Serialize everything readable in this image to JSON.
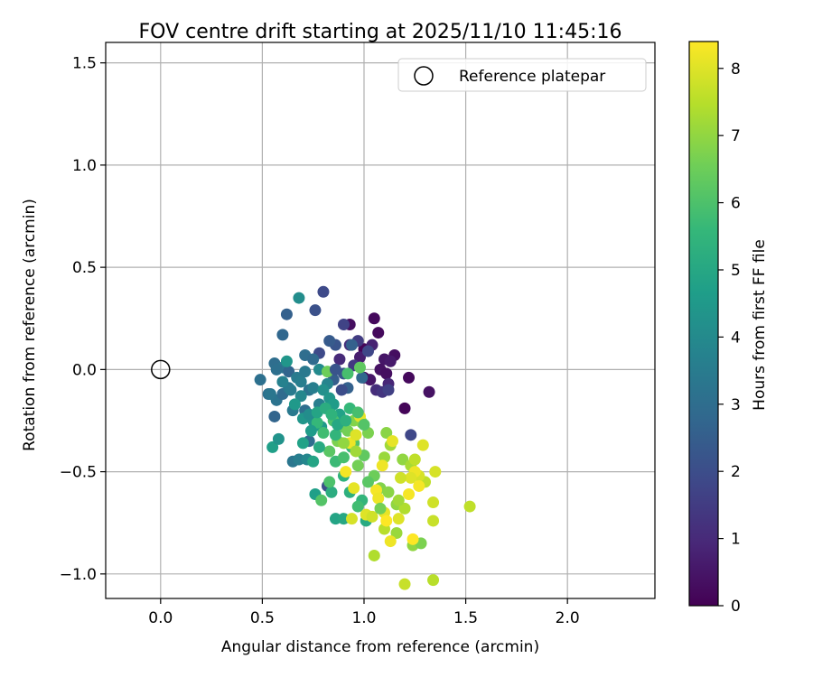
{
  "chart_data": {
    "type": "scatter",
    "title": "FOV centre drift starting at 2025/11/10 11:45:16",
    "xlabel": "Angular distance from reference (arcmin)",
    "ylabel": "Rotation from reference (arcmin)",
    "xlim": [
      -0.27,
      2.43
    ],
    "ylim": [
      -1.12,
      1.6
    ],
    "xticks": [
      0.0,
      0.5,
      1.0,
      1.5,
      2.0
    ],
    "xtick_labels": [
      "0.0",
      "0.5",
      "1.0",
      "1.5",
      "2.0"
    ],
    "yticks": [
      1.5,
      1.0,
      0.5,
      0.0,
      -0.5,
      -1.0
    ],
    "ytick_labels": [
      "1.5",
      "1.0",
      "0.5",
      "0.0",
      "−0.5",
      "−1.0"
    ],
    "grid": true,
    "legend": {
      "location": "top-right",
      "entries": [
        "Reference platepar"
      ]
    },
    "reference_point": {
      "x": 0.0,
      "y": 0.0,
      "label": "Reference platepar"
    },
    "colorbar": {
      "label": "Hours from first FF file",
      "range": [
        0,
        8.4
      ],
      "ticks": [
        0,
        1,
        2,
        3,
        4,
        5,
        6,
        7,
        8
      ],
      "tick_labels": [
        "0",
        "1",
        "2",
        "3",
        "4",
        "5",
        "6",
        "7",
        "8"
      ],
      "colormap": "viridis",
      "colormap_stops": [
        "#440154",
        "#482878",
        "#3e4989",
        "#31688e",
        "#26828e",
        "#1f9e89",
        "#35b779",
        "#6ece58",
        "#b5de2b",
        "#fde725"
      ]
    },
    "points": [
      [
        1.05,
        0.25,
        0.2
      ],
      [
        0.93,
        0.22,
        0.3
      ],
      [
        1.07,
        0.18,
        0.2
      ],
      [
        1.0,
        0.1,
        0.1
      ],
      [
        1.15,
        0.07,
        0.3
      ],
      [
        1.1,
        0.05,
        0.5
      ],
      [
        1.13,
        0.04,
        0.6
      ],
      [
        1.04,
        0.12,
        0.8
      ],
      [
        0.98,
        0.06,
        0.7
      ],
      [
        1.08,
        0.0,
        0.4
      ],
      [
        1.11,
        -0.02,
        0.3
      ],
      [
        1.22,
        -0.04,
        0.2
      ],
      [
        1.32,
        -0.11,
        0.4
      ],
      [
        1.2,
        -0.19,
        0.1
      ],
      [
        1.0,
        -0.04,
        0.1
      ],
      [
        1.03,
        -0.05,
        0.5
      ],
      [
        1.12,
        -0.07,
        0.9
      ],
      [
        1.06,
        -0.1,
        1.1
      ],
      [
        1.09,
        -0.11,
        1.3
      ],
      [
        1.12,
        -0.1,
        1.6
      ],
      [
        0.88,
        0.05,
        1.0
      ],
      [
        0.93,
        0.12,
        1.2
      ],
      [
        0.97,
        0.14,
        1.5
      ],
      [
        1.02,
        0.09,
        1.8
      ],
      [
        0.9,
        0.22,
        1.7
      ],
      [
        0.95,
        0.02,
        1.4
      ],
      [
        0.8,
        0.38,
        1.9
      ],
      [
        0.76,
        0.29,
        2.1
      ],
      [
        0.86,
        0.12,
        2.2
      ],
      [
        0.83,
        0.14,
        2.4
      ],
      [
        0.9,
        -0.02,
        2.3
      ],
      [
        0.78,
        0.08,
        1.9
      ],
      [
        0.85,
        -0.05,
        2.5
      ],
      [
        1.23,
        -0.32,
        1.8
      ],
      [
        0.82,
        -0.57,
        2.1
      ],
      [
        0.92,
        -0.09,
        2.6
      ],
      [
        0.94,
        0.12,
        2.6
      ],
      [
        0.99,
        -0.04,
        2.8
      ],
      [
        0.62,
        0.27,
        2.6
      ],
      [
        0.6,
        0.17,
        2.8
      ],
      [
        0.56,
        0.03,
        3.0
      ],
      [
        0.6,
        0.01,
        3.3
      ],
      [
        0.63,
        -0.01,
        2.7
      ],
      [
        0.56,
        -0.23,
        2.7
      ],
      [
        0.49,
        -0.05,
        3.1
      ],
      [
        0.53,
        -0.12,
        3.1
      ],
      [
        0.57,
        -0.15,
        3.2
      ],
      [
        0.6,
        -0.12,
        2.9
      ],
      [
        0.63,
        -0.09,
        3.3
      ],
      [
        0.67,
        -0.04,
        3.5
      ],
      [
        0.69,
        -0.06,
        3.6
      ],
      [
        0.71,
        0.07,
        3.0
      ],
      [
        0.73,
        -0.1,
        3.2
      ],
      [
        0.75,
        -0.09,
        3.6
      ],
      [
        0.69,
        -0.13,
        3.9
      ],
      [
        0.65,
        -0.2,
        3.4
      ],
      [
        0.71,
        -0.2,
        3.0
      ],
      [
        0.78,
        -0.17,
        3.6
      ],
      [
        0.73,
        -0.35,
        3.0
      ],
      [
        0.65,
        -0.45,
        3.3
      ],
      [
        0.68,
        -0.44,
        3.6
      ],
      [
        0.72,
        -0.44,
        3.9
      ],
      [
        0.68,
        0.35,
        4.1
      ],
      [
        0.62,
        0.04,
        4.4
      ],
      [
        0.82,
        -0.07,
        3.8
      ],
      [
        0.78,
        0.0,
        4.0
      ],
      [
        0.8,
        -0.1,
        4.2
      ],
      [
        0.83,
        -0.14,
        4.4
      ],
      [
        0.85,
        -0.17,
        4.6
      ],
      [
        0.88,
        -0.22,
        4.8
      ],
      [
        0.75,
        -0.25,
        4.3
      ],
      [
        0.79,
        -0.28,
        4.5
      ],
      [
        0.55,
        -0.38,
        4.7
      ],
      [
        0.58,
        -0.34,
        4.3
      ],
      [
        0.66,
        -0.17,
        4.5
      ],
      [
        0.75,
        -0.45,
        4.9
      ],
      [
        0.76,
        -0.61,
        4.7
      ],
      [
        0.84,
        -0.6,
        5.2
      ],
      [
        0.86,
        -0.73,
        4.9
      ],
      [
        0.9,
        -0.73,
        5.0
      ],
      [
        0.93,
        -0.6,
        5.3
      ],
      [
        0.99,
        -0.64,
        5.5
      ],
      [
        0.97,
        -0.67,
        5.8
      ],
      [
        1.01,
        -0.74,
        5.1
      ],
      [
        0.94,
        -0.38,
        5.6
      ],
      [
        0.9,
        -0.52,
        5.4
      ],
      [
        0.86,
        -0.45,
        5.7
      ],
      [
        0.79,
        -0.64,
        6.1
      ],
      [
        0.83,
        -0.55,
        6.0
      ],
      [
        0.9,
        -0.43,
        5.9
      ],
      [
        0.95,
        -0.36,
        6.1
      ],
      [
        1.0,
        -0.42,
        6.3
      ],
      [
        0.98,
        0.01,
        6.3
      ],
      [
        0.82,
        -0.01,
        6.5
      ],
      [
        0.92,
        -0.02,
        5.9
      ],
      [
        0.77,
        -0.26,
        5.6
      ],
      [
        0.8,
        -0.31,
        5.8
      ],
      [
        0.85,
        -0.25,
        6.0
      ],
      [
        0.83,
        -0.4,
        6.2
      ],
      [
        0.89,
        -0.28,
        6.4
      ],
      [
        0.92,
        -0.3,
        6.6
      ],
      [
        0.95,
        -0.25,
        6.8
      ],
      [
        0.99,
        -0.26,
        6.9
      ],
      [
        1.02,
        -0.31,
        6.7
      ],
      [
        0.97,
        -0.47,
        6.6
      ],
      [
        1.05,
        -0.52,
        6.5
      ],
      [
        1.08,
        -0.58,
        6.8
      ],
      [
        1.12,
        -0.6,
        6.9
      ],
      [
        1.16,
        -0.66,
        7.0
      ],
      [
        1.1,
        -0.43,
        7.1
      ],
      [
        1.13,
        -0.37,
        7.2
      ],
      [
        1.19,
        -0.44,
        7.0
      ],
      [
        1.23,
        -0.47,
        7.3
      ],
      [
        1.11,
        -0.31,
        6.9
      ],
      [
        1.2,
        -0.68,
        7.4
      ],
      [
        1.1,
        -0.78,
        7.5
      ],
      [
        1.16,
        -0.8,
        7.1
      ],
      [
        1.05,
        -0.91,
        7.4
      ],
      [
        1.24,
        -0.86,
        7.0
      ],
      [
        1.28,
        -0.85,
        6.7
      ],
      [
        1.2,
        -1.05,
        7.7
      ],
      [
        1.34,
        -1.03,
        7.5
      ],
      [
        1.52,
        -0.67,
        7.6
      ],
      [
        1.34,
        -0.74,
        7.7
      ],
      [
        1.34,
        -0.65,
        7.8
      ],
      [
        1.3,
        -0.55,
        7.6
      ],
      [
        1.27,
        -0.52,
        7.9
      ],
      [
        1.29,
        -0.37,
        8.0
      ],
      [
        1.35,
        -0.5,
        7.9
      ],
      [
        1.14,
        -0.35,
        8.1
      ],
      [
        1.09,
        -0.47,
        8.2
      ],
      [
        1.06,
        -0.59,
        8.3
      ],
      [
        1.1,
        -0.7,
        8.1
      ],
      [
        1.13,
        -0.84,
        8.2
      ],
      [
        1.17,
        -0.73,
        8.0
      ],
      [
        1.22,
        -0.61,
        8.3
      ],
      [
        1.25,
        -0.5,
        8.2
      ],
      [
        1.23,
        -0.53,
        8.0
      ],
      [
        1.27,
        -0.57,
        8.3
      ],
      [
        1.24,
        -0.83,
        8.4
      ],
      [
        0.98,
        -0.23,
        8.1
      ],
      [
        0.93,
        -0.36,
        8.2
      ],
      [
        0.96,
        -0.32,
        8.0
      ],
      [
        0.91,
        -0.5,
        8.3
      ],
      [
        0.95,
        -0.58,
        8.1
      ],
      [
        0.94,
        -0.73,
        7.9
      ],
      [
        1.01,
        -0.71,
        8.0
      ],
      [
        1.07,
        -0.63,
        8.2
      ],
      [
        1.04,
        -0.72,
        7.8
      ],
      [
        1.11,
        -0.74,
        8.4
      ],
      [
        1.18,
        -0.53,
        7.8
      ],
      [
        1.25,
        -0.44,
        7.6
      ],
      [
        1.17,
        -0.64,
        7.2
      ],
      [
        1.08,
        -0.68,
        6.6
      ],
      [
        1.02,
        -0.55,
        6.2
      ],
      [
        0.87,
        -0.35,
        6.7
      ],
      [
        0.9,
        -0.36,
        7.0
      ],
      [
        0.96,
        -0.4,
        7.2
      ],
      [
        0.86,
        -0.32,
        5.5
      ],
      [
        0.78,
        -0.38,
        5.1
      ],
      [
        0.74,
        -0.3,
        4.6
      ],
      [
        0.7,
        -0.36,
        4.8
      ],
      [
        0.7,
        -0.24,
        4.4
      ],
      [
        0.73,
        -0.22,
        4.1
      ],
      [
        0.77,
        -0.21,
        4.9
      ],
      [
        0.81,
        -0.19,
        5.2
      ],
      [
        0.84,
        -0.22,
        5.4
      ],
      [
        0.87,
        -0.27,
        5.0
      ],
      [
        0.91,
        -0.25,
        5.3
      ],
      [
        0.93,
        -0.19,
        5.6
      ],
      [
        0.97,
        -0.21,
        5.9
      ],
      [
        1.0,
        -0.27,
        6.1
      ],
      [
        0.89,
        -0.1,
        2.0
      ],
      [
        0.86,
        0.0,
        2.2
      ],
      [
        0.75,
        0.05,
        2.9
      ],
      [
        0.71,
        -0.01,
        3.4
      ],
      [
        0.64,
        -0.1,
        3.5
      ],
      [
        0.6,
        -0.06,
        3.7
      ],
      [
        0.57,
        0.0,
        3.1
      ],
      [
        0.54,
        -0.12,
        3.3
      ]
    ]
  }
}
